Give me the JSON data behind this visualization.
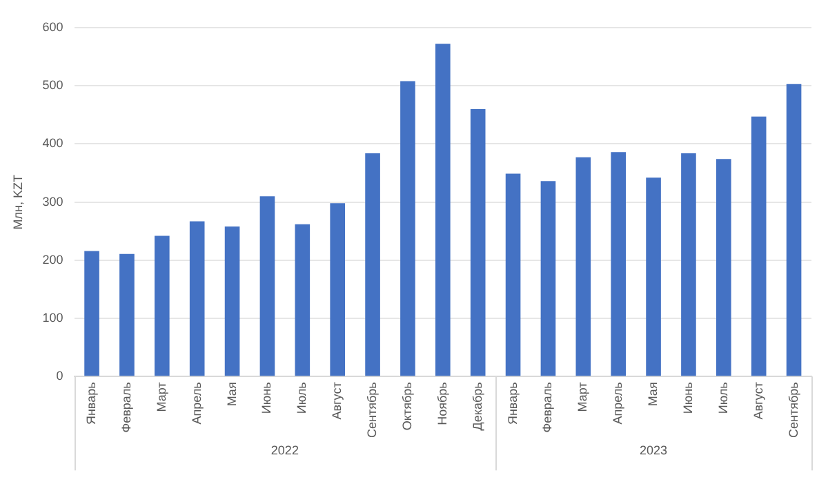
{
  "chart_data": {
    "type": "bar",
    "ylabel": "Млн, KZT",
    "categories": [
      "Январь",
      "Февраль",
      "Март",
      "Апрель",
      "Мая",
      "Июнь",
      "Июль",
      "Август",
      "Сентябрь",
      "Октябрь",
      "Ноябрь",
      "Декабрь",
      "Январь",
      "Февраль",
      "Март",
      "Апрель",
      "Мая",
      "Июнь",
      "Июль",
      "Август",
      "Сентябрь"
    ],
    "values": [
      216,
      211,
      242,
      267,
      258,
      310,
      262,
      298,
      384,
      508,
      572,
      460,
      349,
      336,
      377,
      386,
      342,
      384,
      374,
      447,
      503
    ],
    "color": "#4472c4",
    "ylim": [
      0,
      600
    ],
    "yticks": [
      0,
      100,
      200,
      300,
      400,
      500,
      600
    ],
    "grid": "y",
    "annotations": [
      "2022",
      "2023"
    ]
  }
}
